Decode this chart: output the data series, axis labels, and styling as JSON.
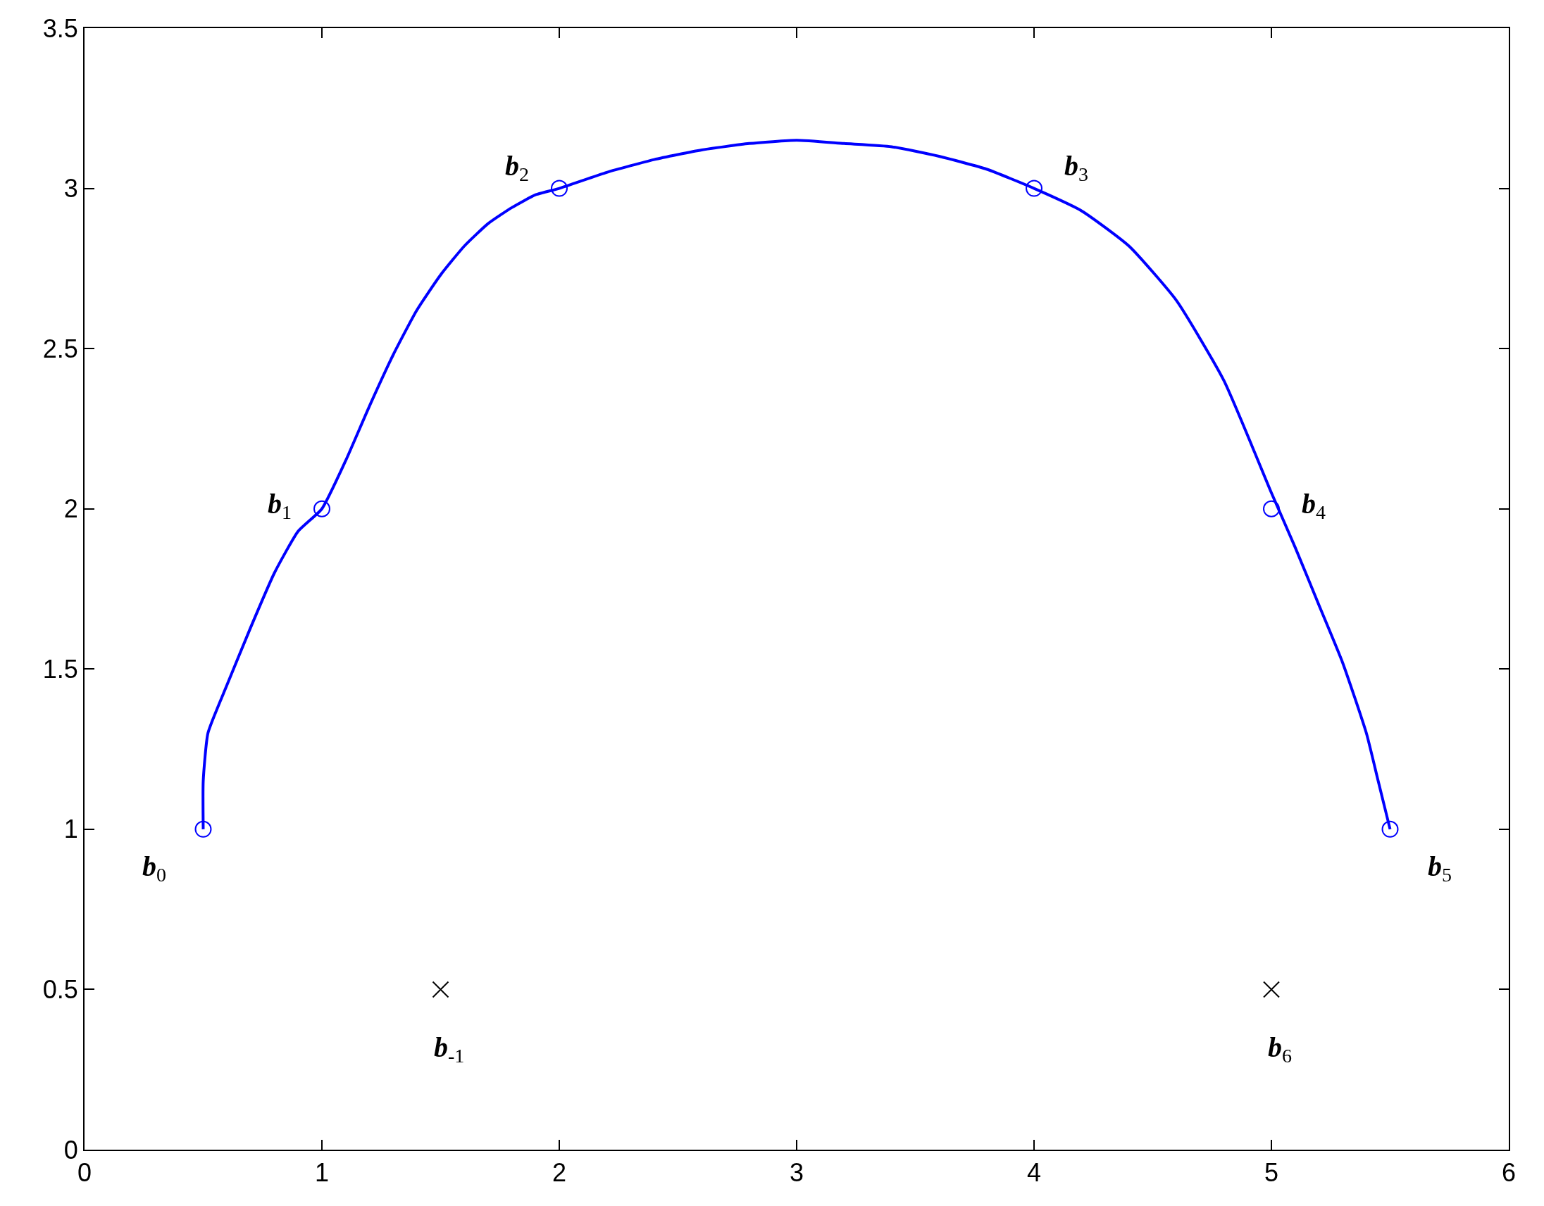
{
  "chart_data": {
    "type": "line",
    "series": [
      {
        "color": "#0000ff",
        "marker": "none",
        "x": [
          0.5,
          0.5,
          0.52,
          0.6,
          0.7,
          0.8,
          0.9,
          1.0,
          1.1,
          1.2,
          1.3,
          1.4,
          1.5,
          1.6,
          1.7,
          1.8,
          1.9,
          2.0,
          2.2,
          2.4,
          2.6,
          2.8,
          3.0,
          3.2,
          3.4,
          3.6,
          3.8,
          4.0,
          4.2,
          4.4,
          4.6,
          4.8,
          5.0,
          5.1,
          5.2,
          5.3,
          5.4,
          5.45,
          5.5
        ],
        "values": [
          1.0,
          1.15,
          1.3,
          1.45,
          1.63,
          1.8,
          1.93,
          2.0,
          2.15,
          2.32,
          2.48,
          2.62,
          2.73,
          2.82,
          2.89,
          2.94,
          2.98,
          3.0,
          3.05,
          3.09,
          3.12,
          3.14,
          3.15,
          3.14,
          3.13,
          3.1,
          3.06,
          3.0,
          2.93,
          2.82,
          2.65,
          2.4,
          2.05,
          1.88,
          1.7,
          1.52,
          1.3,
          1.15,
          1.0
        ]
      },
      {
        "type": "scatter",
        "color": "#0000ff",
        "marker": "circle",
        "x": [
          0.5,
          1,
          2,
          4,
          5,
          5.5
        ],
        "values": [
          1,
          2,
          3,
          3,
          2,
          1
        ]
      },
      {
        "type": "scatter",
        "color": "#000000",
        "marker": "cross",
        "x": [
          1.5,
          5
        ],
        "values": [
          0.5,
          0.5
        ]
      }
    ],
    "annotations": [
      {
        "text": "b$_{0}$",
        "x": 0.5,
        "y": 1
      },
      {
        "text": "b$_{1}$",
        "x": 1,
        "y": 2
      },
      {
        "text": "b$_{2}$",
        "x": 2,
        "y": 3
      },
      {
        "text": "b$_{3}$",
        "x": 4,
        "y": 3
      },
      {
        "text": "b$_{4}$",
        "x": 5,
        "y": 2
      },
      {
        "text": "b$_{5}$",
        "x": 5.5,
        "y": 1
      },
      {
        "text": "b$_{-1}$",
        "x": 1.5,
        "y": 0.5
      },
      {
        "text": "b$_{6}$",
        "x": 5,
        "y": 0.5
      }
    ],
    "xlim": [
      0,
      6
    ],
    "xticks": [
      0,
      1,
      2,
      3,
      4,
      5,
      6
    ],
    "ylim": [
      0,
      3.5
    ],
    "yticks": [
      0,
      0.5,
      1,
      1.5,
      2,
      2.5,
      3,
      3.5
    ]
  }
}
